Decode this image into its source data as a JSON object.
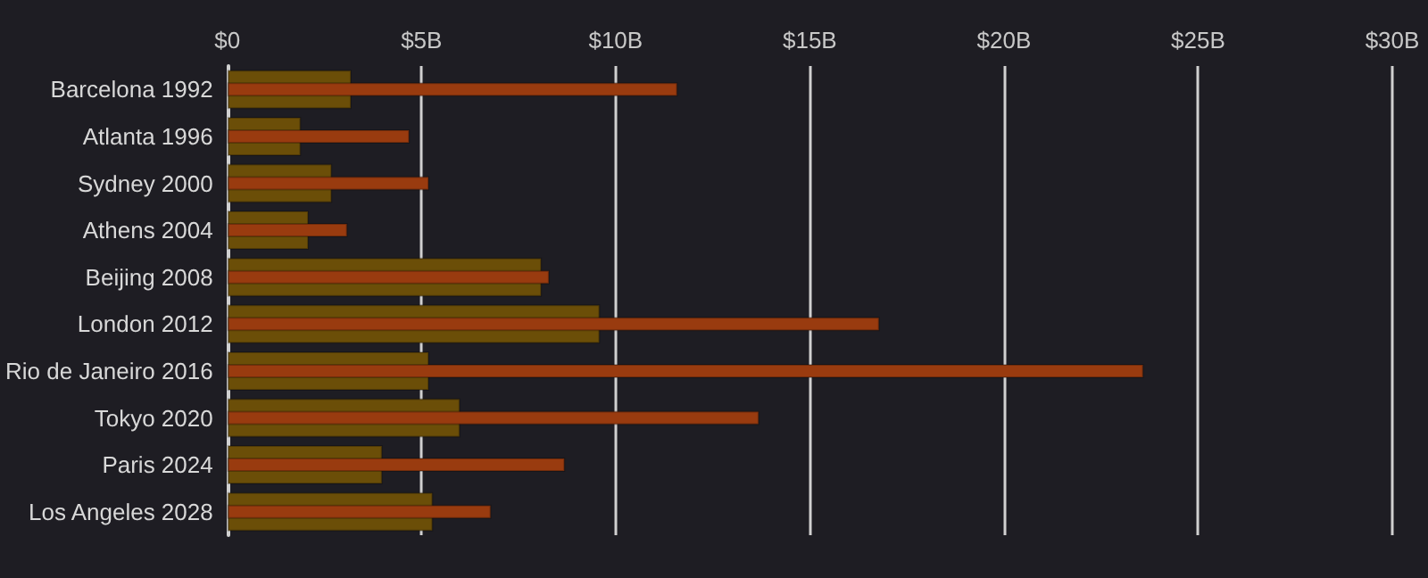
{
  "chart_data": {
    "type": "bar",
    "orientation": "horizontal",
    "categories": [
      "Barcelona 1992",
      "Atlanta 1996",
      "Sydney 2000",
      "Athens 2004",
      "Beijing 2008",
      "London 2012",
      "Rio de Janeiro 2016",
      "Tokyo 2020",
      "Paris 2024",
      "Los Angeles 2028"
    ],
    "series": [
      {
        "color": "#6b4e08",
        "values": [
          3.2,
          1.9,
          2.7,
          2.1,
          8.1,
          9.6,
          5.2,
          6.0,
          4.0,
          5.3
        ]
      },
      {
        "color": "#993b0f",
        "values": [
          11.6,
          4.7,
          5.2,
          3.1,
          8.3,
          16.8,
          23.6,
          13.7,
          8.7,
          6.8
        ]
      }
    ],
    "xlim": [
      0,
      30
    ],
    "xticks": [
      {
        "value": 0,
        "label": "$0"
      },
      {
        "value": 5,
        "label": "$5B"
      },
      {
        "value": 10,
        "label": "$10B"
      },
      {
        "value": 15,
        "label": "$15B"
      },
      {
        "value": 20,
        "label": "$20B"
      },
      {
        "value": 25,
        "label": "$25B"
      },
      {
        "value": 30,
        "label": "$30B"
      }
    ],
    "grid": "x"
  }
}
